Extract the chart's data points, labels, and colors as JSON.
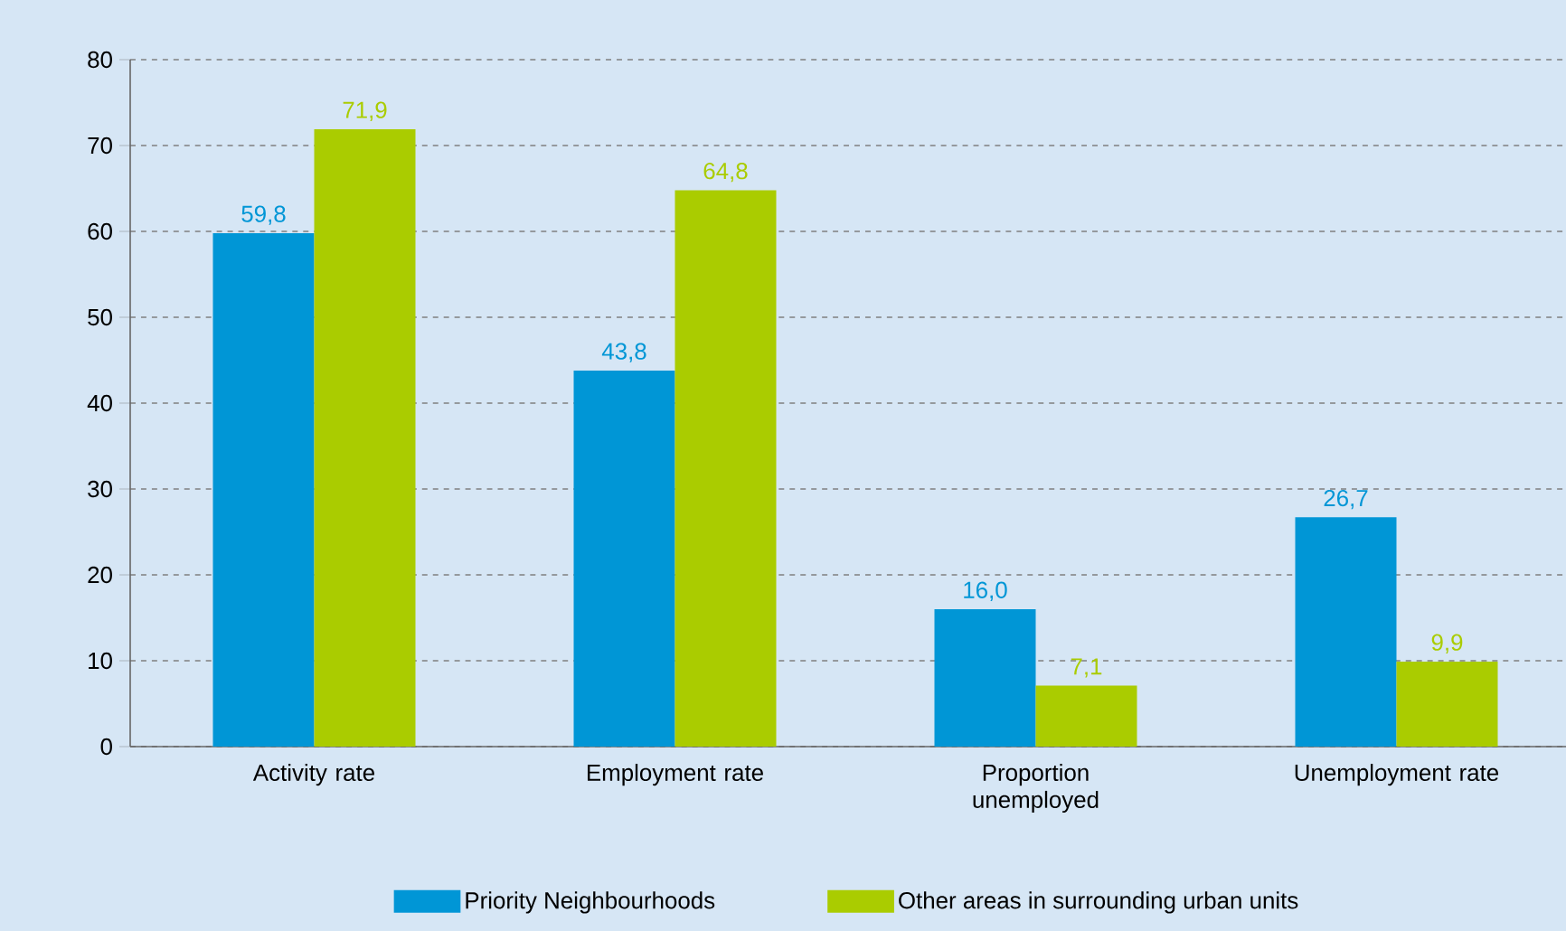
{
  "chart_data": {
    "type": "bar",
    "categories": [
      "Activity rate",
      "Employment rate",
      "Proportion unemployed",
      "Unemployment rate"
    ],
    "series": [
      {
        "name": "Priority Neighbourhoods",
        "color": "#0096d6",
        "values": [
          59.8,
          43.8,
          16.0,
          26.7
        ],
        "value_labels": [
          "59,8",
          "43,8",
          "16,0",
          "26,7"
        ]
      },
      {
        "name": "Other areas in surrounding urban units",
        "color": "#aacc00",
        "values": [
          71.9,
          64.8,
          7.1,
          9.9
        ],
        "value_labels": [
          "71,9",
          "64,8",
          "7,1",
          "9,9"
        ]
      }
    ],
    "ylim": [
      0,
      80
    ],
    "yticks": [
      0,
      10,
      20,
      30,
      40,
      50,
      60,
      70,
      80
    ],
    "grid": "y",
    "legend": "bottom"
  }
}
